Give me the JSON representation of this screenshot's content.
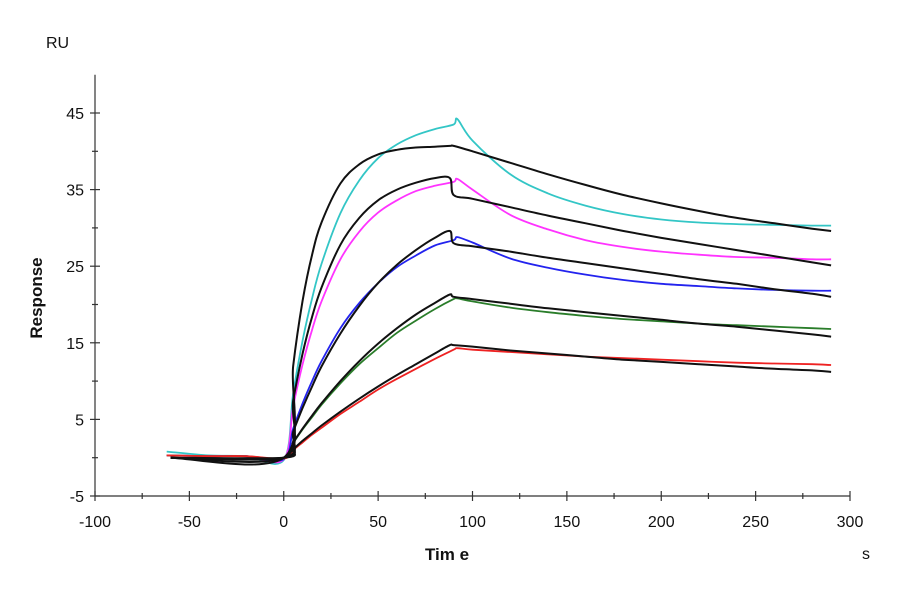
{
  "chart_data": {
    "type": "line",
    "title": "",
    "xlabel": "Tim e",
    "xunit": "s",
    "ylabel": "Response",
    "yunit": "RU",
    "xlim": [
      -100,
      300
    ],
    "ylim": [
      -5,
      50
    ],
    "xticks": [
      -100,
      -50,
      0,
      50,
      100,
      150,
      200,
      250,
      300
    ],
    "xminor": [
      -75,
      -25,
      25,
      75,
      125,
      175,
      225,
      275
    ],
    "yticks": [
      45,
      35,
      25,
      15,
      5,
      -5
    ],
    "yminor": [
      40,
      30,
      20,
      10,
      0
    ],
    "grid": false,
    "legend": "none",
    "measured_x": [
      -62,
      -40,
      -20,
      0,
      5,
      10,
      15,
      20,
      30,
      40,
      50,
      60,
      70,
      80,
      90,
      92,
      100,
      120,
      140,
      160,
      180,
      200,
      220,
      240,
      260,
      280,
      290
    ],
    "fit_x": [
      -60,
      0,
      5,
      10,
      15,
      20,
      30,
      40,
      50,
      60,
      70,
      80,
      88,
      90,
      100,
      120,
      140,
      160,
      180,
      200,
      220,
      240,
      260,
      280,
      290
    ],
    "series": [
      {
        "color": "#33c6c6",
        "kind": "measured",
        "values": [
          0.8,
          0.3,
          0.2,
          -0.3,
          8.4,
          15.3,
          20.8,
          25.3,
          31.9,
          36.2,
          39.1,
          40.9,
          42.1,
          42.9,
          43.5,
          44.2,
          41.4,
          37.0,
          34.5,
          32.9,
          31.8,
          31.1,
          30.7,
          30.5,
          30.4,
          30.3,
          30.3
        ]
      },
      {
        "color": "#ff33ff",
        "kind": "measured",
        "values": [
          0.3,
          0.2,
          0.2,
          -0.2,
          6.7,
          12.2,
          16.7,
          20.4,
          25.9,
          29.5,
          32.0,
          33.6,
          34.8,
          35.5,
          36.0,
          36.4,
          35.0,
          31.7,
          29.8,
          28.4,
          27.5,
          26.9,
          26.5,
          26.2,
          26.1,
          25.9,
          25.9
        ]
      },
      {
        "color": "#2323ee",
        "kind": "measured",
        "values": [
          0.3,
          0.2,
          0.2,
          -0.2,
          3.8,
          7.1,
          10.0,
          12.6,
          16.9,
          20.2,
          22.8,
          24.9,
          26.4,
          27.7,
          28.4,
          28.8,
          28.1,
          26.0,
          24.8,
          23.9,
          23.2,
          22.7,
          22.4,
          22.1,
          21.9,
          21.8,
          21.8
        ]
      },
      {
        "color": "#2a7d2a",
        "kind": "measured",
        "values": [
          0.3,
          0.2,
          0.2,
          -0.1,
          1.9,
          3.7,
          5.3,
          6.9,
          9.7,
          12.2,
          14.3,
          16.3,
          17.9,
          19.4,
          20.7,
          20.8,
          20.4,
          19.6,
          19.0,
          18.5,
          18.1,
          17.8,
          17.5,
          17.3,
          17.1,
          16.9,
          16.8
        ]
      },
      {
        "color": "#ee2222",
        "kind": "measured",
        "values": [
          0.3,
          0.2,
          0.2,
          -0.1,
          1.0,
          2.0,
          3.0,
          3.9,
          5.7,
          7.3,
          8.9,
          10.3,
          11.6,
          12.9,
          14.1,
          14.3,
          14.1,
          13.8,
          13.5,
          13.2,
          13.0,
          12.8,
          12.6,
          12.4,
          12.3,
          12.2,
          12.1
        ]
      },
      {
        "color": "#111111",
        "kind": "fit",
        "values": [
          0,
          0,
          12.0,
          20.5,
          26.5,
          30.7,
          35.8,
          38.3,
          39.6,
          40.2,
          40.5,
          40.6,
          40.7,
          40.7,
          40.0,
          38.5,
          37.0,
          35.6,
          34.3,
          33.2,
          32.2,
          31.3,
          30.6,
          29.9,
          29.6
        ]
      },
      {
        "color": "#111111",
        "kind": "fit",
        "values": [
          0,
          0,
          7.5,
          13.6,
          18.4,
          22.2,
          27.8,
          31.3,
          33.6,
          35.0,
          35.9,
          36.5,
          36.5,
          34.3,
          33.8,
          32.7,
          31.6,
          30.6,
          29.6,
          28.7,
          27.9,
          27.1,
          26.3,
          25.5,
          25.1
        ]
      },
      {
        "color": "#111111",
        "kind": "fit",
        "values": [
          0,
          0,
          3.4,
          6.5,
          9.3,
          11.9,
          16.2,
          19.8,
          22.8,
          25.2,
          27.1,
          28.7,
          29.6,
          28.0,
          27.6,
          26.9,
          26.1,
          25.4,
          24.7,
          24.0,
          23.3,
          22.7,
          22.0,
          21.4,
          21.0
        ]
      },
      {
        "color": "#111111",
        "kind": "fit",
        "values": [
          0,
          0,
          2.0,
          3.8,
          5.5,
          7.1,
          10.0,
          12.6,
          14.9,
          16.9,
          18.7,
          20.2,
          21.3,
          21.0,
          20.7,
          20.1,
          19.5,
          19.0,
          18.5,
          18.0,
          17.5,
          17.1,
          16.6,
          16.1,
          15.8
        ]
      },
      {
        "color": "#111111",
        "kind": "fit",
        "values": [
          0,
          0,
          1.1,
          2.2,
          3.2,
          4.2,
          6.0,
          7.7,
          9.3,
          10.8,
          12.2,
          13.6,
          14.7,
          14.7,
          14.5,
          14.0,
          13.6,
          13.2,
          12.8,
          12.5,
          12.2,
          11.9,
          11.6,
          11.4,
          11.2
        ]
      }
    ]
  }
}
